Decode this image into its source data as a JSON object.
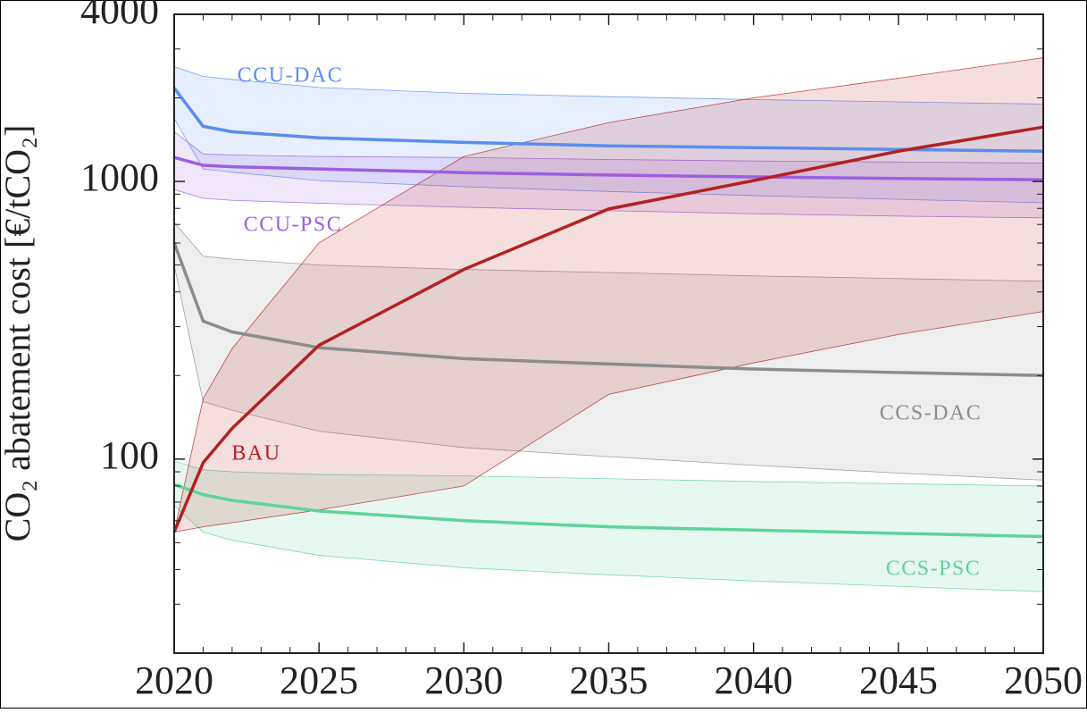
{
  "chart_data": {
    "type": "line",
    "y_label": "CO₂ abatement cost [€/tCO₂]",
    "log_y": true,
    "x": [
      2020,
      2021,
      2022,
      2025,
      2030,
      2035,
      2040,
      2045,
      2050
    ],
    "xlim": [
      2020,
      2050
    ],
    "xticks": [
      2020,
      2025,
      2030,
      2035,
      2040,
      2045,
      2050
    ],
    "xminorticks": [
      2021,
      2022,
      2023,
      2024,
      2026,
      2027,
      2028,
      2029,
      2031,
      2032,
      2033,
      2034,
      2036,
      2037,
      2038,
      2039,
      2041,
      2042,
      2043,
      2044,
      2046,
      2047,
      2048,
      2049
    ],
    "ylim": [
      20,
      4000
    ],
    "yticks": [
      100,
      1000,
      4000
    ],
    "yminorticks": [
      30,
      40,
      50,
      60,
      70,
      80,
      90,
      200,
      300,
      400,
      500,
      600,
      700,
      800,
      900,
      2000,
      3000
    ],
    "series": [
      {
        "name": "CCU-DAC",
        "color": "#5b8def",
        "values": [
          2170,
          1580,
          1510,
          1436,
          1383,
          1343,
          1324,
          1304,
          1285
        ],
        "upper": [
          2590,
          2390,
          2330,
          2180,
          2077,
          2020,
          1972,
          1935,
          1900
        ],
        "lower": [
          1690,
          1109,
          1080,
          1007,
          957,
          920,
          889,
          862,
          838
        ]
      },
      {
        "name": "CCU-PSC",
        "color": "#9b5fe0",
        "values": [
          1221,
          1143,
          1130,
          1109,
          1076,
          1055,
          1038,
          1025,
          1014
        ],
        "upper": [
          1510,
          1256,
          1245,
          1230,
          1220,
          1200,
          1185,
          1175,
          1165
        ],
        "lower": [
          935,
          869,
          855,
          835,
          807,
          785,
          765,
          750,
          739
        ]
      },
      {
        "name": "CCS-DAC",
        "color": "#8c8c8c",
        "values": [
          601,
          314,
          287,
          252,
          230,
          220,
          211,
          205,
          200
        ],
        "upper": [
          712,
          538,
          525,
          500,
          482,
          470,
          457,
          447,
          437
        ],
        "lower": [
          500,
          161,
          150,
          126,
          110,
          102,
          95,
          89,
          84
        ]
      },
      {
        "name": "CCS-PSC",
        "color": "#5fd39a",
        "values": [
          81,
          74.5,
          71,
          65,
          60,
          57,
          55.5,
          54,
          52.6
        ],
        "upper": [
          98.5,
          91.5,
          90,
          88,
          87,
          85,
          83,
          81.5,
          80
        ],
        "lower": [
          68,
          54.6,
          51,
          45,
          40.6,
          38.3,
          36.4,
          34.8,
          33.3
        ]
      },
      {
        "name": "BAU",
        "color": "#b22222",
        "values": [
          54.6,
          97,
          129,
          257,
          482,
          796,
          1007,
          1285,
          1570
        ],
        "upper": [
          54.6,
          165,
          250,
          601,
          1230,
          1629,
          2000,
          2354,
          2790
        ],
        "lower": [
          54.6,
          57,
          59,
          65.6,
          80,
          171,
          222,
          281,
          340
        ]
      }
    ]
  }
}
